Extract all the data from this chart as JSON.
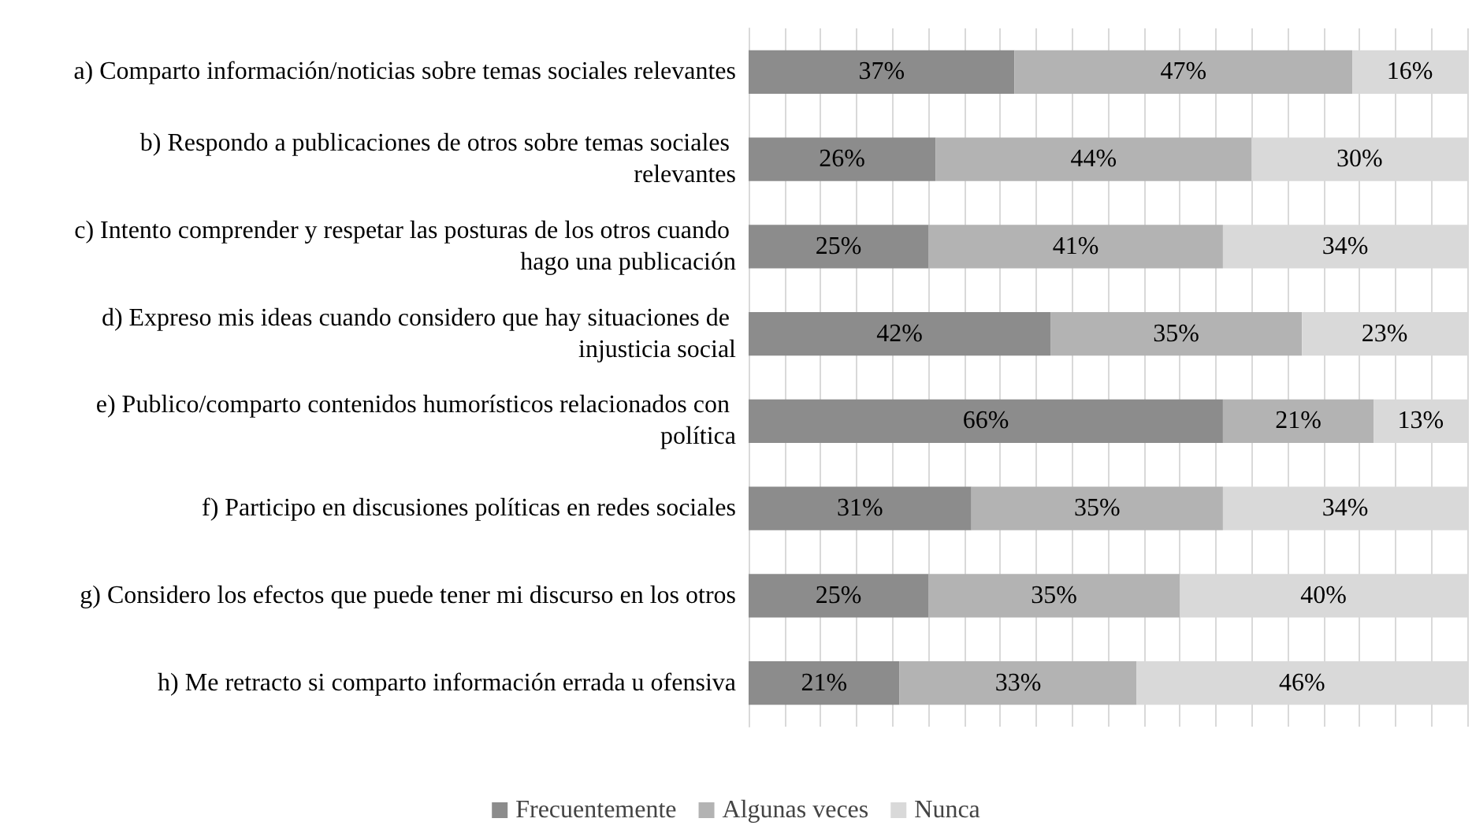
{
  "chart_data": {
    "type": "bar",
    "orientation": "horizontal",
    "stacked": true,
    "categories": [
      "a) Comparto información/noticias sobre temas sociales relevantes",
      "b) Respondo a publicaciones de otros sobre temas sociales relevantes",
      "c) Intento comprender y respetar las posturas de los otros cuando hago una publicación",
      "d) Expreso mis ideas cuando considero que hay situaciones de injusticia social",
      "e) Publico/comparto contenidos humorísticos relacionados con política",
      "f) Participo en discusiones políticas en redes sociales",
      "g) Considero los efectos que puede tener mi discurso en los otros",
      "h) Me retracto si comparto información errada u ofensiva"
    ],
    "series": [
      {
        "name": "Frecuentemente",
        "color": "#8c8c8c",
        "values": [
          37,
          26,
          25,
          42,
          66,
          31,
          25,
          21
        ],
        "value_labels": [
          "37%",
          "26%",
          "25%",
          "42%",
          "66%",
          "31%",
          "25%",
          "21%"
        ]
      },
      {
        "name": "Algunas veces",
        "color": "#b3b3b3",
        "values": [
          47,
          44,
          41,
          35,
          21,
          35,
          35,
          33
        ],
        "value_labels": [
          "47%",
          "44%",
          "41%",
          "35%",
          "21%",
          "35%",
          "35%",
          "33%"
        ]
      },
      {
        "name": "Nunca",
        "color": "#d9d9d9",
        "values": [
          16,
          30,
          34,
          23,
          13,
          34,
          40,
          46
        ],
        "value_labels": [
          "16%",
          "30%",
          "34%",
          "23%",
          "13%",
          "34%",
          "40%",
          "46%"
        ]
      }
    ],
    "xlim": [
      0,
      100
    ],
    "xticks": [
      {
        "value": 0,
        "label": null
      },
      {
        "value": 5,
        "label": null
      },
      {
        "value": 10,
        "label": null
      },
      {
        "value": 15,
        "label": null
      },
      {
        "value": 20,
        "label": null
      },
      {
        "value": 25,
        "label": null
      },
      {
        "value": 30,
        "label": null
      },
      {
        "value": 35,
        "label": null
      },
      {
        "value": 40,
        "label": null
      },
      {
        "value": 45,
        "label": null
      },
      {
        "value": 50,
        "label": null
      },
      {
        "value": 55,
        "label": null
      },
      {
        "value": 60,
        "label": null
      },
      {
        "value": 65,
        "label": null
      },
      {
        "value": 70,
        "label": null
      },
      {
        "value": 75,
        "label": null
      },
      {
        "value": 80,
        "label": null
      },
      {
        "value": 85,
        "label": null
      },
      {
        "value": 90,
        "label": null
      },
      {
        "value": 95,
        "label": null
      },
      {
        "value": 100,
        "label": null
      }
    ],
    "grid": "x",
    "legend": "bottom",
    "tick_labels": "y"
  }
}
